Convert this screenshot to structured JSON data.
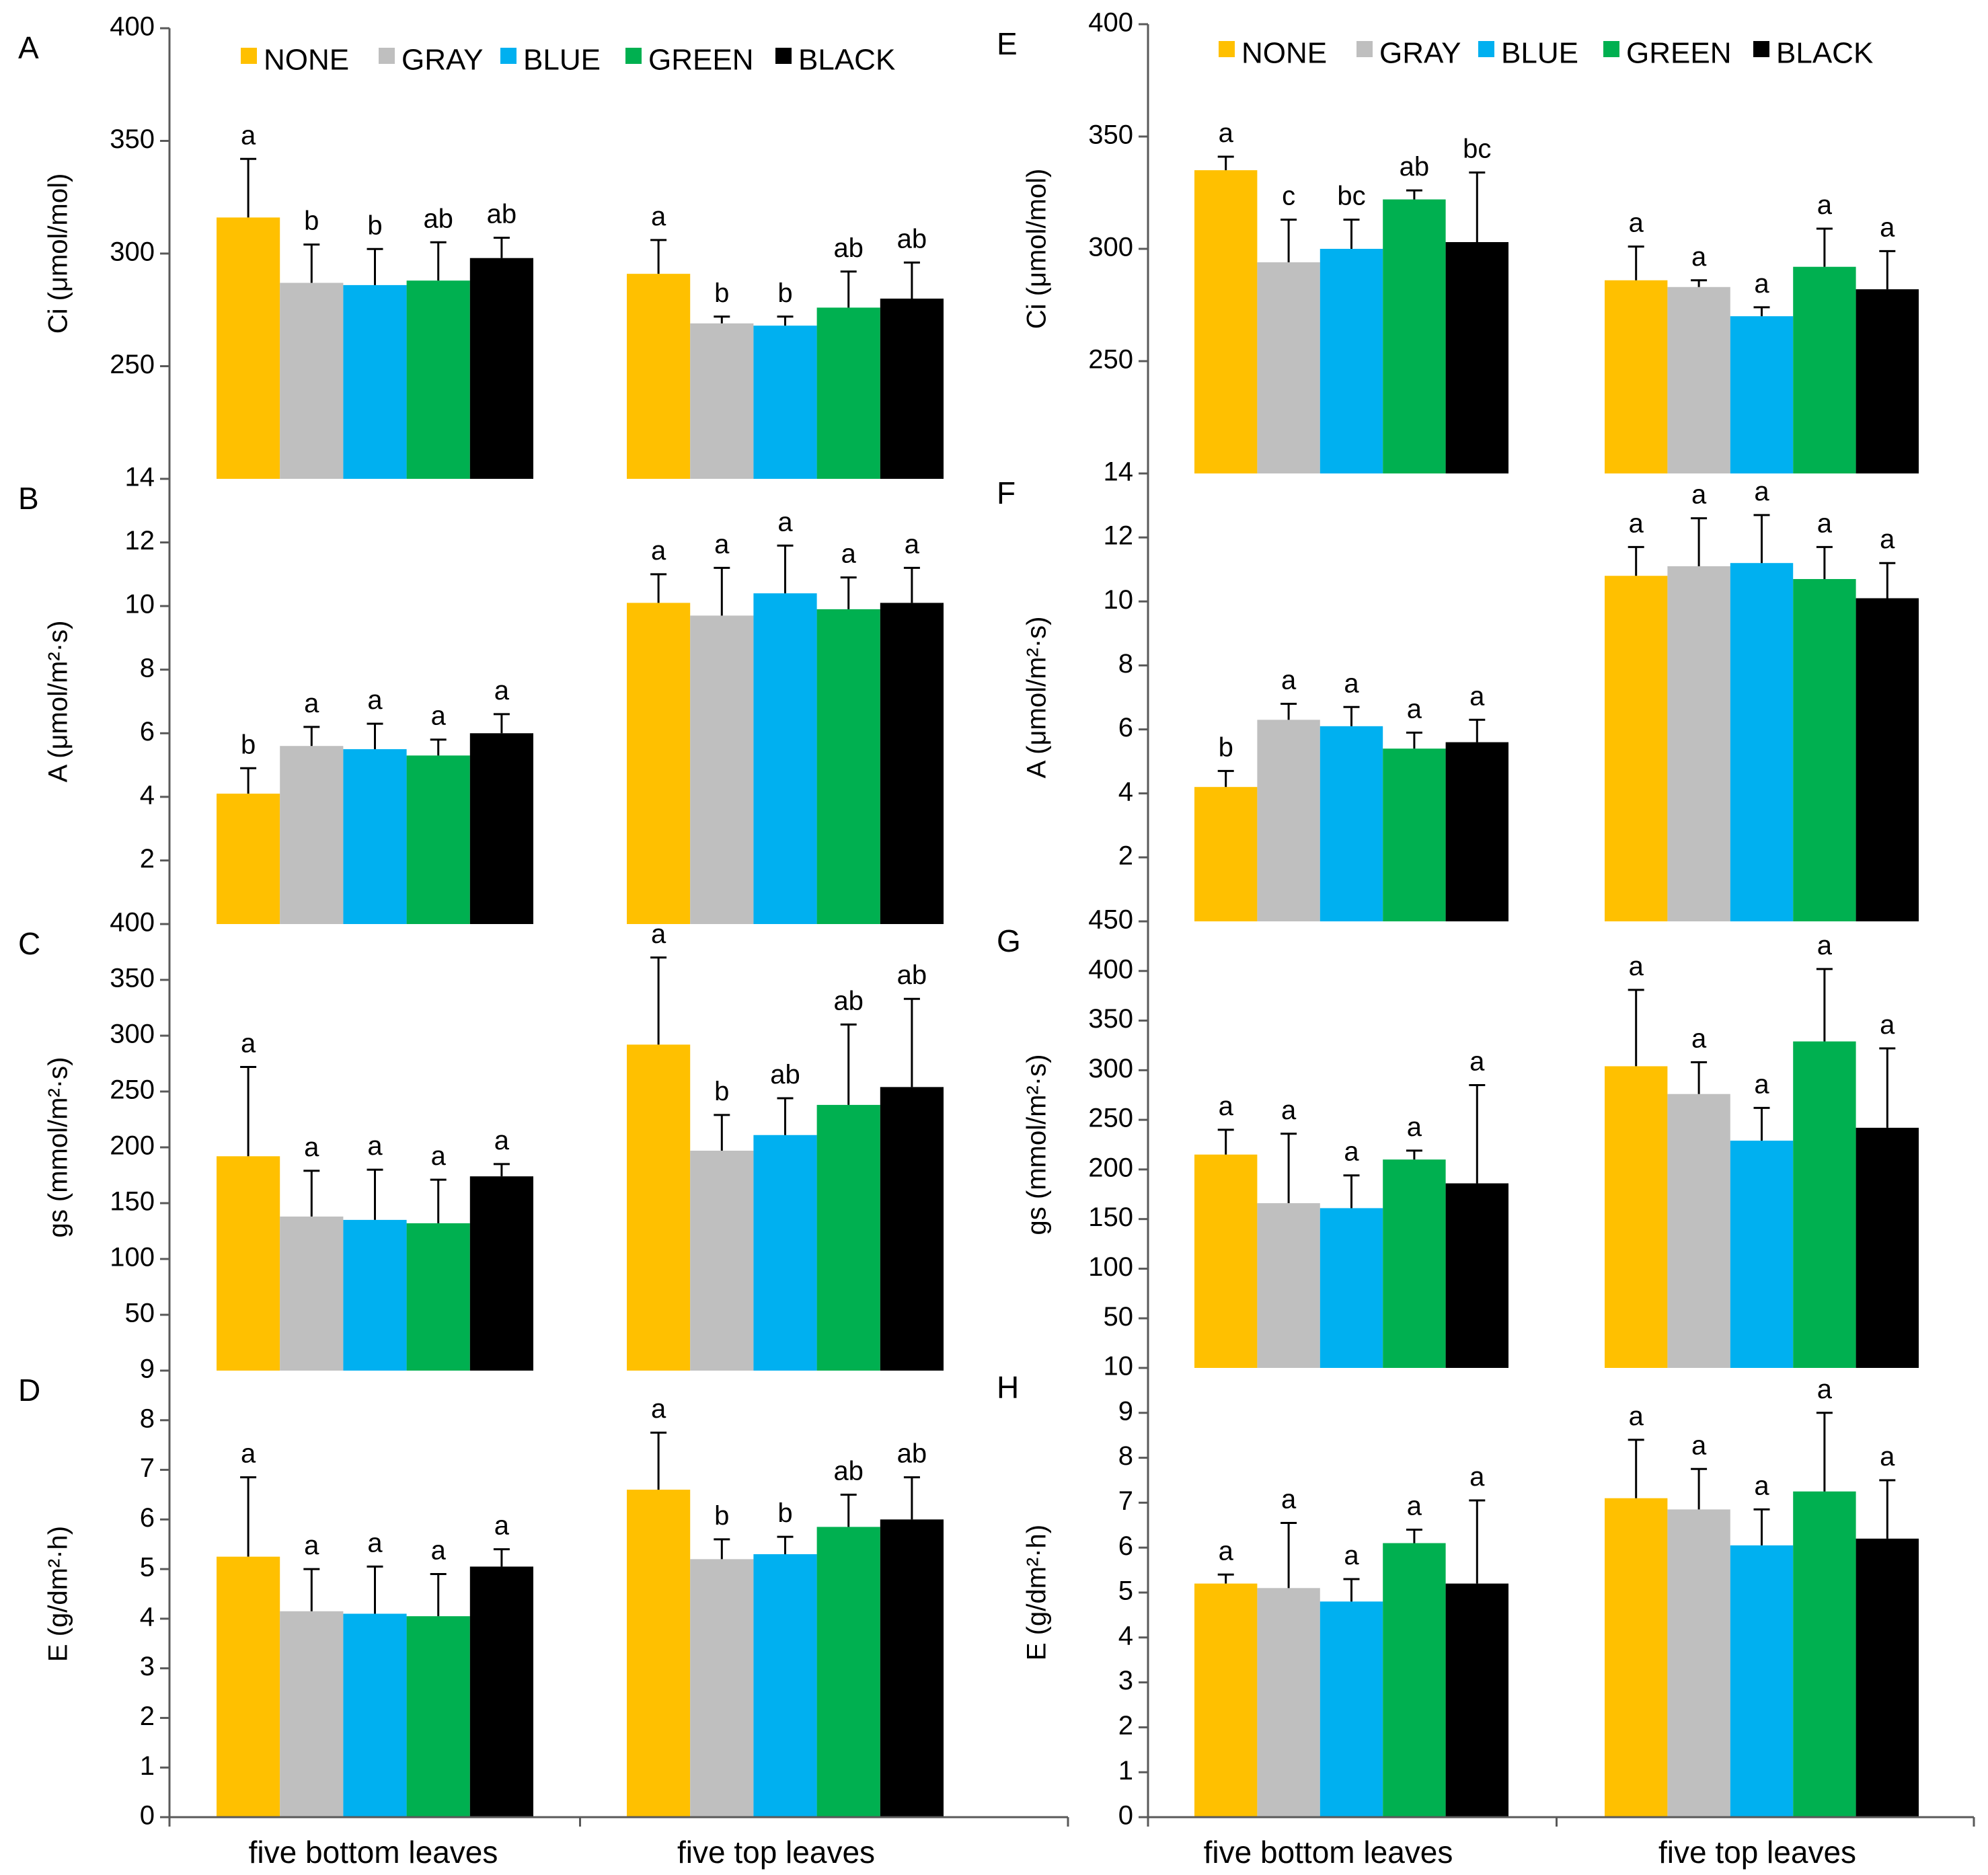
{
  "colors": {
    "NONE": "#FFC000",
    "GRAY": "#BFBFBF",
    "BLUE": "#00B0F0",
    "GREEN": "#00B050",
    "BLACK": "#000000"
  },
  "legend": [
    "NONE",
    "GRAY",
    "BLUE",
    "GREEN",
    "BLACK"
  ],
  "chart_data": [
    {
      "type": "bar",
      "panel": "A",
      "ylabel": "Ci (μmol/mol)",
      "ylim": [
        200,
        400
      ],
      "ticks": [
        250,
        300,
        350,
        400
      ],
      "bottom_tick_text": "14",
      "categories": [
        "five bottom leaves",
        "five top leaves"
      ],
      "series": [
        {
          "name": "NONE",
          "values": [
            316,
            291
          ],
          "errors": [
            26,
            15
          ],
          "letters": [
            "a",
            "a"
          ]
        },
        {
          "name": "GRAY",
          "values": [
            287,
            269
          ],
          "errors": [
            17,
            3
          ],
          "letters": [
            "b",
            "b"
          ]
        },
        {
          "name": "BLUE",
          "values": [
            286,
            268
          ],
          "errors": [
            16,
            4
          ],
          "letters": [
            "b",
            "b"
          ]
        },
        {
          "name": "GREEN",
          "values": [
            288,
            276
          ],
          "errors": [
            17,
            16
          ],
          "letters": [
            "ab",
            "ab"
          ]
        },
        {
          "name": "BLACK",
          "values": [
            298,
            280
          ],
          "errors": [
            9,
            16
          ],
          "letters": [
            "ab",
            "ab"
          ]
        }
      ]
    },
    {
      "type": "bar",
      "panel": "B",
      "ylabel": "A (μmol/m²·s)",
      "ylim": [
        0,
        14
      ],
      "ticks": [
        2,
        4,
        6,
        8,
        10,
        12
      ],
      "bottom_tick_text": "400",
      "categories": [
        "five bottom leaves",
        "five top leaves"
      ],
      "series": [
        {
          "name": "NONE",
          "values": [
            4.1,
            10.1
          ],
          "errors": [
            0.8,
            0.9
          ],
          "letters": [
            "b",
            "a"
          ]
        },
        {
          "name": "GRAY",
          "values": [
            5.6,
            9.7
          ],
          "errors": [
            0.6,
            1.5
          ],
          "letters": [
            "a",
            "a"
          ]
        },
        {
          "name": "BLUE",
          "values": [
            5.5,
            10.4
          ],
          "errors": [
            0.8,
            1.5
          ],
          "letters": [
            "a",
            "a"
          ]
        },
        {
          "name": "GREEN",
          "values": [
            5.3,
            9.9
          ],
          "errors": [
            0.5,
            1.0
          ],
          "letters": [
            "a",
            "a"
          ]
        },
        {
          "name": "BLACK",
          "values": [
            6.0,
            10.1
          ],
          "errors": [
            0.6,
            1.1
          ],
          "letters": [
            "a",
            "a"
          ]
        }
      ]
    },
    {
      "type": "bar",
      "panel": "C",
      "ylabel": "gs (mmol/m²·s)",
      "ylim": [
        0,
        400
      ],
      "ticks": [
        50,
        100,
        150,
        200,
        250,
        300,
        350
      ],
      "bottom_tick_text": "9",
      "categories": [
        "five bottom leaves",
        "five top leaves"
      ],
      "series": [
        {
          "name": "NONE",
          "values": [
            192,
            292
          ],
          "errors": [
            80,
            78
          ],
          "letters": [
            "a",
            "a"
          ]
        },
        {
          "name": "GRAY",
          "values": [
            138,
            197
          ],
          "errors": [
            41,
            32
          ],
          "letters": [
            "a",
            "b"
          ]
        },
        {
          "name": "BLUE",
          "values": [
            135,
            211
          ],
          "errors": [
            45,
            33
          ],
          "letters": [
            "a",
            "ab"
          ]
        },
        {
          "name": "GREEN",
          "values": [
            132,
            238
          ],
          "errors": [
            39,
            72
          ],
          "letters": [
            "a",
            "ab"
          ]
        },
        {
          "name": "BLACK",
          "values": [
            174,
            254
          ],
          "errors": [
            11,
            79
          ],
          "letters": [
            "a",
            "ab"
          ]
        }
      ]
    },
    {
      "type": "bar",
      "panel": "D",
      "ylabel": "E (g/dm²·h)",
      "ylim": [
        0,
        9
      ],
      "ticks": [
        0,
        1,
        2,
        3,
        4,
        5,
        6,
        7,
        8
      ],
      "bottom_tick_text": null,
      "categories": [
        "five bottom leaves",
        "five top leaves"
      ],
      "series": [
        {
          "name": "NONE",
          "values": [
            5.25,
            6.6
          ],
          "errors": [
            1.6,
            1.15
          ],
          "letters": [
            "a",
            "a"
          ]
        },
        {
          "name": "GRAY",
          "values": [
            4.15,
            5.2
          ],
          "errors": [
            0.85,
            0.4
          ],
          "letters": [
            "a",
            "b"
          ]
        },
        {
          "name": "BLUE",
          "values": [
            4.1,
            5.3
          ],
          "errors": [
            0.95,
            0.35
          ],
          "letters": [
            "a",
            "b"
          ]
        },
        {
          "name": "GREEN",
          "values": [
            4.05,
            5.85
          ],
          "errors": [
            0.85,
            0.65
          ],
          "letters": [
            "a",
            "ab"
          ]
        },
        {
          "name": "BLACK",
          "values": [
            5.05,
            6.0
          ],
          "errors": [
            0.35,
            0.85
          ],
          "letters": [
            "a",
            "ab"
          ]
        }
      ]
    },
    {
      "type": "bar",
      "panel": "E",
      "ylabel": "Ci (μmol/mol)",
      "ylim": [
        200,
        400
      ],
      "ticks": [
        250,
        300,
        350,
        400
      ],
      "bottom_tick_text": "14",
      "categories": [
        "five bottom leaves",
        "five top leaves"
      ],
      "series": [
        {
          "name": "NONE",
          "values": [
            335,
            286
          ],
          "errors": [
            6,
            15
          ],
          "letters": [
            "a",
            "a"
          ]
        },
        {
          "name": "GRAY",
          "values": [
            294,
            283
          ],
          "errors": [
            19,
            3
          ],
          "letters": [
            "c",
            "a"
          ]
        },
        {
          "name": "BLUE",
          "values": [
            300,
            270
          ],
          "errors": [
            13,
            4
          ],
          "letters": [
            "bc",
            "a"
          ]
        },
        {
          "name": "GREEN",
          "values": [
            322,
            292
          ],
          "errors": [
            4,
            17
          ],
          "letters": [
            "ab",
            "a"
          ]
        },
        {
          "name": "BLACK",
          "values": [
            303,
            282
          ],
          "errors": [
            31,
            17
          ],
          "letters": [
            "bc",
            "a"
          ]
        }
      ]
    },
    {
      "type": "bar",
      "panel": "F",
      "ylabel": "A (μmol/m²·s)",
      "ylim": [
        0,
        14
      ],
      "ticks": [
        2,
        4,
        6,
        8,
        10,
        12
      ],
      "bottom_tick_text": "450",
      "categories": [
        "five bottom leaves",
        "five top leaves"
      ],
      "series": [
        {
          "name": "NONE",
          "values": [
            4.2,
            10.8
          ],
          "errors": [
            0.5,
            0.9
          ],
          "letters": [
            "b",
            "a"
          ]
        },
        {
          "name": "GRAY",
          "values": [
            6.3,
            11.1
          ],
          "errors": [
            0.5,
            1.5
          ],
          "letters": [
            "a",
            "a"
          ]
        },
        {
          "name": "BLUE",
          "values": [
            6.1,
            11.2
          ],
          "errors": [
            0.6,
            1.5
          ],
          "letters": [
            "a",
            "a"
          ]
        },
        {
          "name": "GREEN",
          "values": [
            5.4,
            10.7
          ],
          "errors": [
            0.5,
            1.0
          ],
          "letters": [
            "a",
            "a"
          ]
        },
        {
          "name": "BLACK",
          "values": [
            5.6,
            10.1
          ],
          "errors": [
            0.7,
            1.1
          ],
          "letters": [
            "a",
            "a"
          ]
        }
      ]
    },
    {
      "type": "bar",
      "panel": "G",
      "ylabel": "gs (mmol/m²·s)",
      "ylim": [
        0,
        450
      ],
      "ticks": [
        50,
        100,
        150,
        200,
        250,
        300,
        350,
        400
      ],
      "bottom_tick_text": "10",
      "categories": [
        "five bottom leaves",
        "five top leaves"
      ],
      "series": [
        {
          "name": "NONE",
          "values": [
            215,
            304
          ],
          "errors": [
            25,
            77
          ],
          "letters": [
            "a",
            "a"
          ]
        },
        {
          "name": "GRAY",
          "values": [
            166,
            276
          ],
          "errors": [
            70,
            32
          ],
          "letters": [
            "a",
            "a"
          ]
        },
        {
          "name": "BLUE",
          "values": [
            161,
            229
          ],
          "errors": [
            33,
            33
          ],
          "letters": [
            "a",
            "a"
          ]
        },
        {
          "name": "GREEN",
          "values": [
            210,
            329
          ],
          "errors": [
            9,
            73
          ],
          "letters": [
            "a",
            "a"
          ]
        },
        {
          "name": "BLACK",
          "values": [
            186,
            242
          ],
          "errors": [
            99,
            80
          ],
          "letters": [
            "a",
            "a"
          ]
        }
      ]
    },
    {
      "type": "bar",
      "panel": "H",
      "ylabel": "E (g/dm²·h)",
      "ylim": [
        0,
        10
      ],
      "ticks": [
        0,
        1,
        2,
        3,
        4,
        5,
        6,
        7,
        8,
        9
      ],
      "bottom_tick_text": null,
      "categories": [
        "five bottom leaves",
        "five top leaves"
      ],
      "series": [
        {
          "name": "NONE",
          "values": [
            5.2,
            7.1
          ],
          "errors": [
            0.2,
            1.3
          ],
          "letters": [
            "a",
            "a"
          ]
        },
        {
          "name": "GRAY",
          "values": [
            5.1,
            6.85
          ],
          "errors": [
            1.45,
            0.9
          ],
          "letters": [
            "a",
            "a"
          ]
        },
        {
          "name": "BLUE",
          "values": [
            4.8,
            6.05
          ],
          "errors": [
            0.5,
            0.8
          ],
          "letters": [
            "a",
            "a"
          ]
        },
        {
          "name": "GREEN",
          "values": [
            6.1,
            7.25
          ],
          "errors": [
            0.3,
            1.75
          ],
          "letters": [
            "a",
            "a"
          ]
        },
        {
          "name": "BLACK",
          "values": [
            5.2,
            6.2
          ],
          "errors": [
            1.85,
            1.3
          ],
          "letters": [
            "a",
            "a"
          ]
        }
      ]
    }
  ]
}
